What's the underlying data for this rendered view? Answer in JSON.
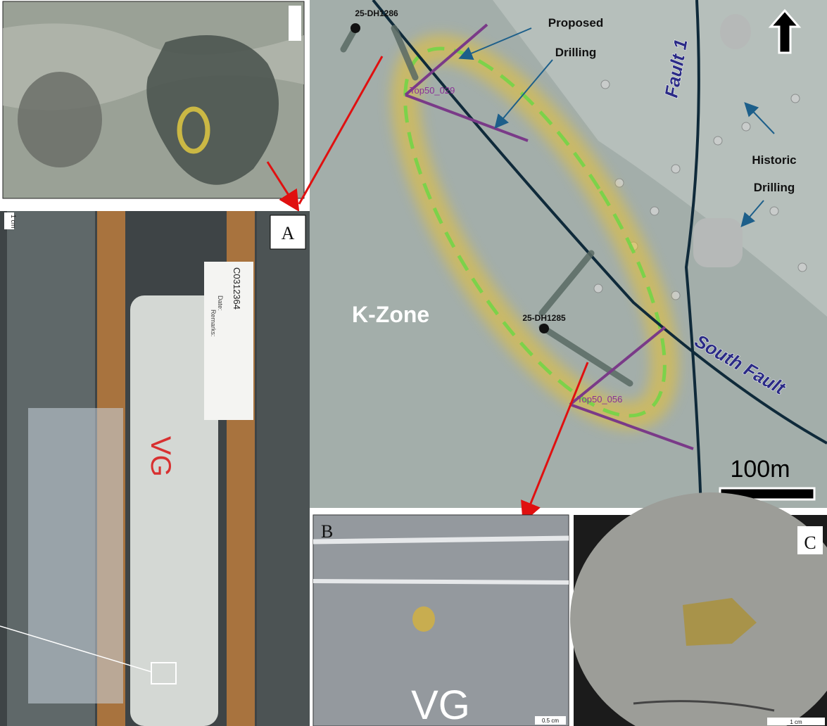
{
  "main_map": {
    "hole_labels": [
      "25-DH1286",
      "25-DH1285"
    ],
    "target_labels": [
      "Top50_029",
      "Top50_056"
    ],
    "proposed_drilling": [
      "Proposed",
      "Drilling"
    ],
    "historic_drilling": [
      "Historic",
      "Drilling"
    ],
    "zone_label": "K-Zone",
    "faults": [
      "Fault 1",
      "South Fault"
    ],
    "scale_bar": "100m"
  },
  "panels": {
    "a": {
      "label": "A",
      "scale": "1 cm",
      "sample_tag": "C0312364",
      "tag_fields": [
        "Date:",
        "Remarks:"
      ],
      "core_marking": "VG"
    },
    "b": {
      "label": "B",
      "caption": "VG",
      "scale": "0.5 cm"
    },
    "c": {
      "label": "C",
      "scale": "1 cm"
    }
  }
}
